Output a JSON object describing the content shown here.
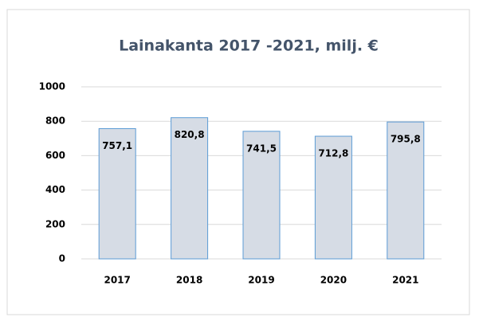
{
  "chart_data": {
    "type": "bar",
    "title": "Lainakanta 2017 -2021, milj. €",
    "categories": [
      "2017",
      "2018",
      "2019",
      "2020",
      "2021"
    ],
    "values": [
      757.1,
      820.8,
      741.5,
      712.8,
      795.8
    ],
    "value_labels": [
      "757,1",
      "820,8",
      "741,5",
      "712,8",
      "795,8"
    ],
    "color": "#d6dce5",
    "edge_color": "#5b9bd5",
    "ylim": [
      0,
      1000
    ],
    "yticks": [
      0,
      200,
      400,
      600,
      800,
      1000
    ],
    "grid": true
  }
}
